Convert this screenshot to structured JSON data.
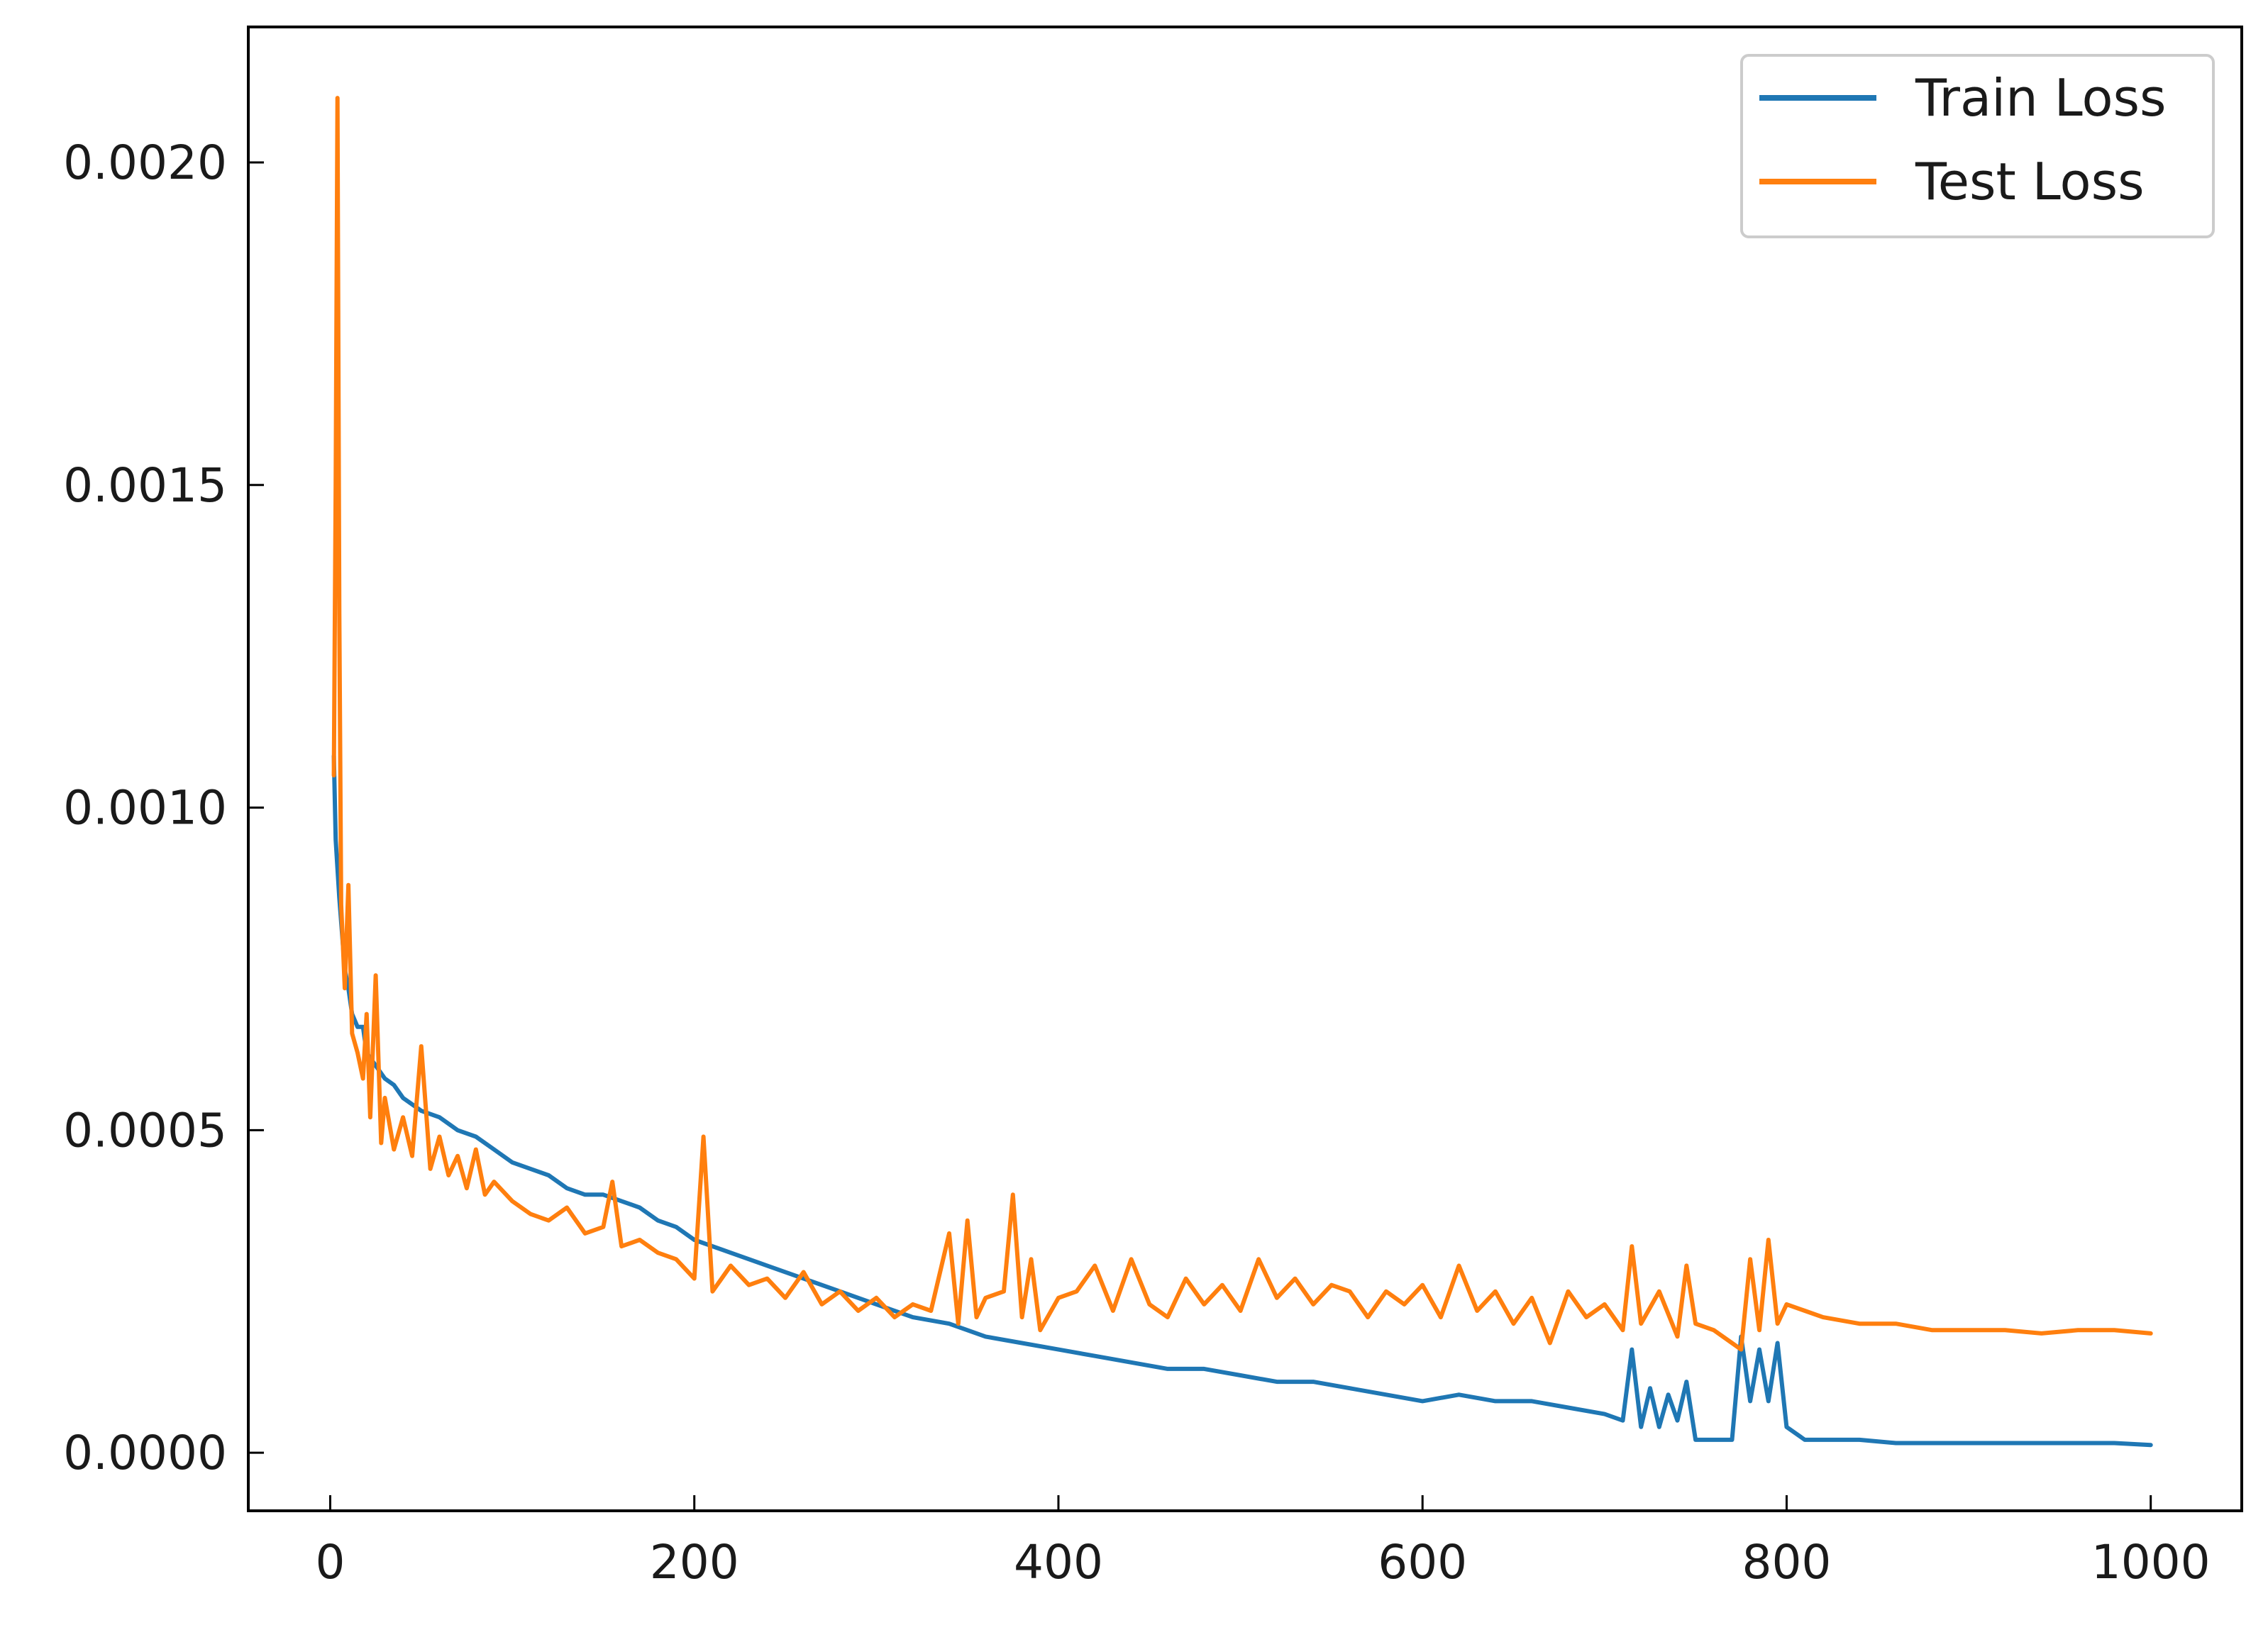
{
  "chart_data": {
    "type": "line",
    "title": "",
    "xlabel": "",
    "ylabel": "",
    "xlim": [
      -45,
      1050
    ],
    "ylim": [
      -9e-05,
      0.00221
    ],
    "xticks": [
      0,
      200,
      400,
      600,
      800,
      1000
    ],
    "xtick_labels": [
      "0",
      "200",
      "400",
      "600",
      "800",
      "1000"
    ],
    "yticks": [
      0.0,
      0.0005,
      0.001,
      0.0015,
      0.002
    ],
    "ytick_labels": [
      "0.0000",
      "0.0005",
      "0.0010",
      "0.0015",
      "0.0020"
    ],
    "grid": false,
    "tick_direction": "in",
    "legend_position": "top-right",
    "series": [
      {
        "name": "Train Loss",
        "color": "#1f77b4",
        "x": [
          2,
          3,
          5,
          8,
          10,
          12,
          15,
          18,
          20,
          25,
          30,
          35,
          40,
          45,
          50,
          60,
          70,
          80,
          90,
          100,
          110,
          120,
          130,
          140,
          150,
          160,
          170,
          180,
          190,
          200,
          220,
          240,
          260,
          280,
          300,
          320,
          340,
          360,
          380,
          400,
          420,
          440,
          460,
          480,
          500,
          520,
          540,
          560,
          580,
          600,
          620,
          640,
          660,
          680,
          700,
          710,
          715,
          720,
          725,
          730,
          735,
          740,
          745,
          750,
          760,
          770,
          775,
          780,
          785,
          790,
          795,
          800,
          810,
          820,
          840,
          860,
          880,
          900,
          920,
          940,
          960,
          980,
          1000
        ],
        "y": [
          0.00108,
          0.00095,
          0.00086,
          0.00075,
          0.00072,
          0.00068,
          0.00066,
          0.00066,
          0.00062,
          0.0006,
          0.00058,
          0.00057,
          0.00055,
          0.00054,
          0.00053,
          0.00052,
          0.0005,
          0.00049,
          0.00047,
          0.00045,
          0.00044,
          0.00043,
          0.00041,
          0.0004,
          0.0004,
          0.00039,
          0.00038,
          0.00036,
          0.00035,
          0.00033,
          0.00031,
          0.00029,
          0.00027,
          0.00025,
          0.00023,
          0.00021,
          0.0002,
          0.00018,
          0.00017,
          0.00016,
          0.00015,
          0.00014,
          0.00013,
          0.00013,
          0.00012,
          0.00011,
          0.00011,
          0.0001,
          9e-05,
          8e-05,
          9e-05,
          8e-05,
          8e-05,
          7e-05,
          6e-05,
          5e-05,
          0.00016,
          4e-05,
          0.0001,
          4e-05,
          9e-05,
          5e-05,
          0.00011,
          2e-05,
          2e-05,
          2e-05,
          0.00018,
          8e-05,
          0.00016,
          8e-05,
          0.00017,
          4e-05,
          2e-05,
          2e-05,
          2e-05,
          1.5e-05,
          1.5e-05,
          1.5e-05,
          1.5e-05,
          1.5e-05,
          1.5e-05,
          1.5e-05,
          1.2e-05
        ]
      },
      {
        "name": "Test Loss",
        "color": "#ff7f0e",
        "x": [
          2,
          3,
          4,
          5,
          6,
          8,
          10,
          12,
          15,
          18,
          20,
          22,
          25,
          28,
          30,
          35,
          40,
          45,
          50,
          55,
          60,
          65,
          70,
          75,
          80,
          85,
          90,
          100,
          110,
          120,
          130,
          140,
          150,
          155,
          160,
          170,
          180,
          190,
          200,
          205,
          210,
          220,
          230,
          240,
          250,
          260,
          270,
          280,
          290,
          300,
          310,
          320,
          330,
          340,
          345,
          350,
          355,
          360,
          370,
          375,
          380,
          385,
          390,
          400,
          410,
          420,
          430,
          440,
          450,
          460,
          470,
          480,
          490,
          500,
          510,
          520,
          530,
          540,
          550,
          560,
          570,
          580,
          590,
          600,
          610,
          620,
          630,
          640,
          650,
          660,
          670,
          680,
          690,
          700,
          710,
          715,
          720,
          730,
          740,
          745,
          750,
          760,
          770,
          775,
          780,
          785,
          790,
          795,
          800,
          810,
          820,
          840,
          860,
          880,
          900,
          920,
          940,
          960,
          980,
          1000
        ],
        "y": [
          0.00105,
          0.0015,
          0.0021,
          0.0013,
          0.00085,
          0.00072,
          0.00088,
          0.00065,
          0.00062,
          0.00058,
          0.00068,
          0.00052,
          0.00074,
          0.00048,
          0.00055,
          0.00047,
          0.00052,
          0.00046,
          0.00063,
          0.00044,
          0.00049,
          0.00043,
          0.00046,
          0.00041,
          0.00047,
          0.0004,
          0.00042,
          0.00039,
          0.00037,
          0.00036,
          0.00038,
          0.00034,
          0.00035,
          0.00042,
          0.00032,
          0.00033,
          0.00031,
          0.0003,
          0.00027,
          0.00049,
          0.00025,
          0.00029,
          0.00026,
          0.00027,
          0.00024,
          0.00028,
          0.00023,
          0.00025,
          0.00022,
          0.00024,
          0.00021,
          0.00023,
          0.00022,
          0.00034,
          0.0002,
          0.00036,
          0.00021,
          0.00024,
          0.00025,
          0.0004,
          0.00021,
          0.0003,
          0.00019,
          0.00024,
          0.00025,
          0.00029,
          0.00022,
          0.0003,
          0.00023,
          0.00021,
          0.00027,
          0.00023,
          0.00026,
          0.00022,
          0.0003,
          0.00024,
          0.00027,
          0.00023,
          0.00026,
          0.00025,
          0.00021,
          0.00025,
          0.00023,
          0.00026,
          0.00021,
          0.00029,
          0.00022,
          0.00025,
          0.0002,
          0.00024,
          0.00017,
          0.00025,
          0.00021,
          0.00023,
          0.00019,
          0.00032,
          0.0002,
          0.00025,
          0.00018,
          0.00029,
          0.0002,
          0.00019,
          0.00017,
          0.00016,
          0.0003,
          0.00019,
          0.00033,
          0.0002,
          0.00023,
          0.00022,
          0.00021,
          0.0002,
          0.0002,
          0.00019,
          0.00019,
          0.00019,
          0.000185,
          0.00019,
          0.00019,
          0.000185
        ]
      }
    ]
  }
}
